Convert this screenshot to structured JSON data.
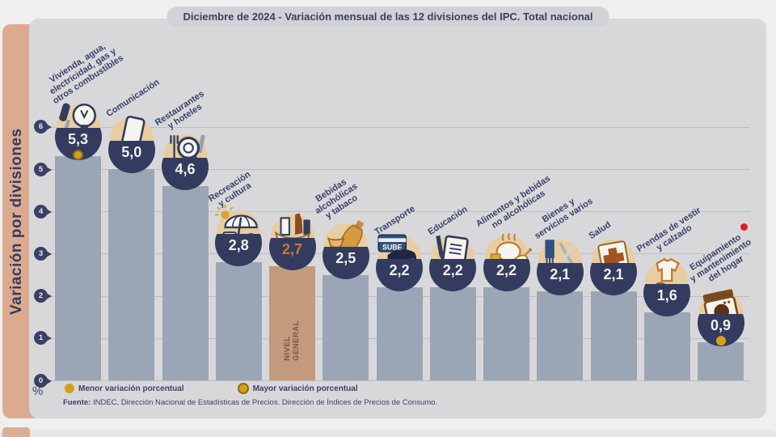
{
  "page": {
    "title": "Diciembre de 2024 - Variación mensual de las 12 divisiones del IPC. Total nacional"
  },
  "sidebar": {
    "label": "Variación por divisiones"
  },
  "axis": {
    "unit": "%",
    "ticks": [
      0,
      1,
      2,
      3,
      4,
      5,
      6
    ]
  },
  "legend": {
    "items": [
      {
        "label": "Menor variación porcentual",
        "marker": "gold-dot"
      },
      {
        "label": "Mayor variación porcentual",
        "marker": "gold-dot-ringed"
      }
    ]
  },
  "source": {
    "prefix": "Fuente:",
    "text": " INDEC, Dirección Nacional de Estadísticas de Precios. Dirección de Índices de Precios de Consumo."
  },
  "chart_data": {
    "type": "bar",
    "title": "Diciembre de 2024 - Variación mensual de las 12 divisiones del IPC. Total nacional",
    "ylabel": "Variación por divisiones",
    "xlabel": "",
    "ylim": [
      0,
      6
    ],
    "yticks": [
      0,
      1,
      2,
      3,
      4,
      5,
      6
    ],
    "grid": true,
    "unit": "%",
    "categories": [
      "Vivienda, agua,\nelectricidad, gas y\notros combustibles",
      "Comunicación",
      "Restaurantes\ny hoteles",
      "Recreación\ny cultura",
      "NIVEL GENERAL",
      "Bebidas\nalcohólicas\ny tabaco",
      "Transporte",
      "Educación",
      "Alimentos y bebidas\nno alcohólicas",
      "Bienes y\nservicios varios",
      "Salud",
      "Prendas de vestir\ny calzado",
      "Equipamiento\ny mantenimiento\ndel hogar"
    ],
    "values": [
      5.3,
      5.0,
      4.6,
      2.8,
      2.7,
      2.5,
      2.2,
      2.2,
      2.2,
      2.1,
      2.1,
      1.6,
      0.9
    ],
    "display_values": [
      "5,3",
      "5,0",
      "4,6",
      "2,8",
      "2,7",
      "2,5",
      "2,2",
      "2,2",
      "2,2",
      "2,1",
      "2,1",
      "1,6",
      "0,9"
    ],
    "icons": [
      "housing-utilities-icon",
      "smartphone-icon",
      "restaurant-plate-icon",
      "beach-umbrella-icon",
      "shopping-basket-icon",
      "bottle-wine-icon",
      "sube-card-icon",
      "notebook-icon",
      "chicken-food-icon",
      "scissors-comb-icon",
      "medical-cross-icon",
      "tshirt-shoe-icon",
      "washing-machine-icon"
    ],
    "highlight_index": 4,
    "highlight_bar_label": "NIVEL\nGENERAL",
    "max_marker_index": 0,
    "min_marker_index": 12,
    "sube_card_text": "SUBE",
    "colors": {
      "bar": "#9aa6b6",
      "highlight_bar": "#c49a7c",
      "bowl": "#333c5e",
      "value_text": "#f2f1ec",
      "highlight_value_text": "#c9792e",
      "icon_circle": "#e7cda2",
      "side_band": "#dcab8f",
      "card_bg": "#d8d8db",
      "gold_marker": "#d2a01c",
      "label_text": "#3b4268",
      "red_dot": "#e01f1f"
    }
  }
}
